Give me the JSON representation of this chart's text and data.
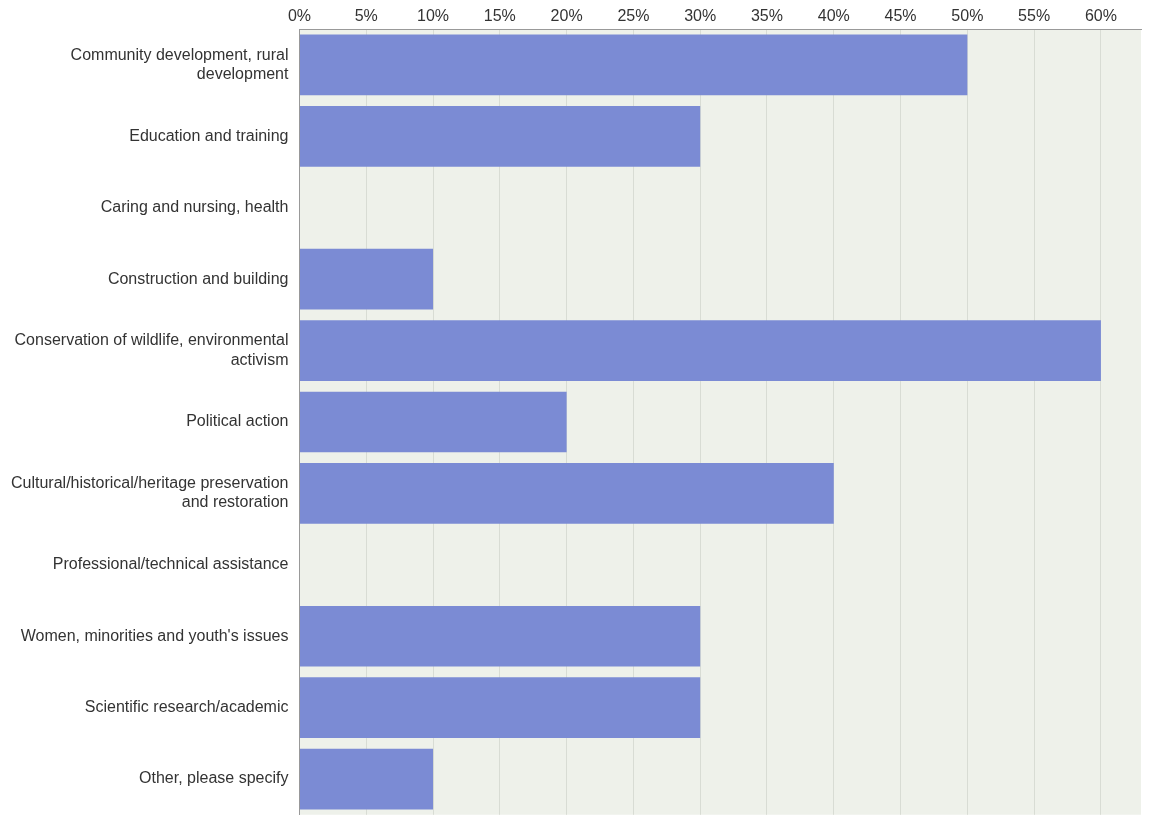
{
  "chart_data": {
    "type": "bar",
    "orientation": "horizontal",
    "categories": [
      "Community development, rural development",
      "Education and training",
      "Caring and nursing, health",
      "Construction and building",
      "Conservation of wildlife, environmental activism",
      "Political action",
      "Cultural/historical/heritage preservation and restoration",
      "Professional/technical assistance",
      "Women, minorities and youth's issues",
      "Scientific research/academic",
      "Other, please specify"
    ],
    "values": [
      50,
      30,
      0,
      10,
      60,
      20,
      40,
      0,
      30,
      30,
      10
    ],
    "color": "#7b8bd4",
    "xlim": [
      0,
      63
    ],
    "xticks": [
      {
        "value": 0,
        "label": "0%"
      },
      {
        "value": 5,
        "label": "5%"
      },
      {
        "value": 10,
        "label": "10%"
      },
      {
        "value": 15,
        "label": "15%"
      },
      {
        "value": 20,
        "label": "20%"
      },
      {
        "value": 25,
        "label": "25%"
      },
      {
        "value": 30,
        "label": "30%"
      },
      {
        "value": 35,
        "label": "35%"
      },
      {
        "value": 40,
        "label": "40%"
      },
      {
        "value": 45,
        "label": "45%"
      },
      {
        "value": 50,
        "label": "50%"
      },
      {
        "value": 55,
        "label": "55%"
      },
      {
        "value": 60,
        "label": "60%"
      }
    ],
    "grid": "x",
    "legend": false
  }
}
